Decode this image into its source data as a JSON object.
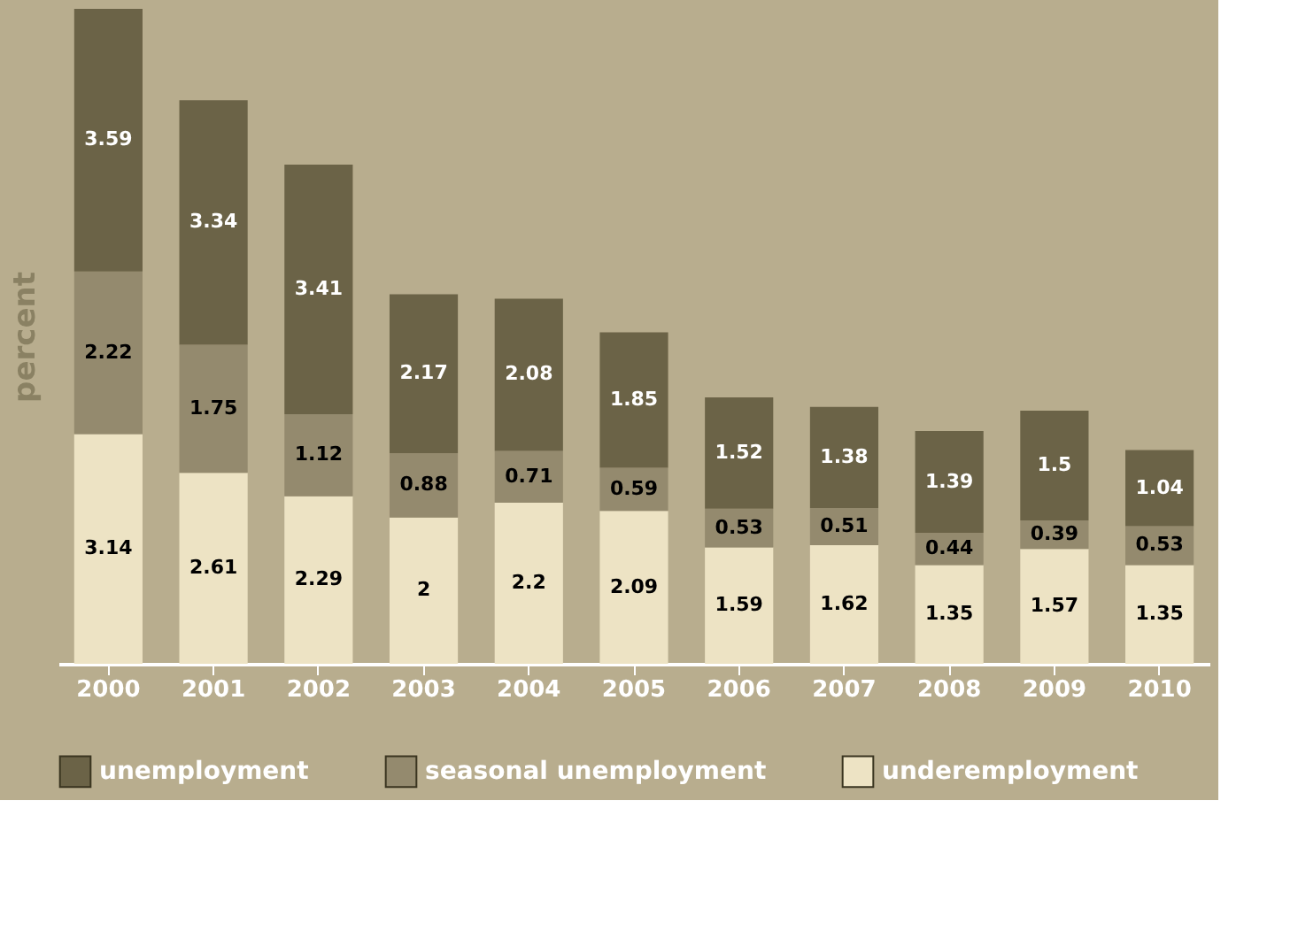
{
  "chart_data": {
    "type": "bar",
    "stacked": true,
    "ylabel": "percent",
    "tick_labels": "x",
    "categories": [
      "2000",
      "2001",
      "2002",
      "2003",
      "2004",
      "2005",
      "2006",
      "2007",
      "2008",
      "2009",
      "2010"
    ],
    "series": [
      {
        "name": "underemployment",
        "color": "#ede3c4",
        "values": [
          3.14,
          2.61,
          2.29,
          2,
          2.2,
          2.09,
          1.59,
          1.62,
          1.35,
          1.57,
          1.35
        ]
      },
      {
        "name": "seasonal unemployment",
        "color": "#948a6e",
        "values": [
          2.22,
          1.75,
          1.12,
          0.88,
          0.71,
          0.59,
          0.53,
          0.51,
          0.44,
          0.39,
          0.53
        ]
      },
      {
        "name": "unemployment",
        "color": "#6b6347",
        "values": [
          3.59,
          3.34,
          3.41,
          2.17,
          2.08,
          1.85,
          1.52,
          1.38,
          1.39,
          1.5,
          1.04
        ]
      }
    ],
    "data_labels": true,
    "legend": "bottom",
    "grid": false
  }
}
